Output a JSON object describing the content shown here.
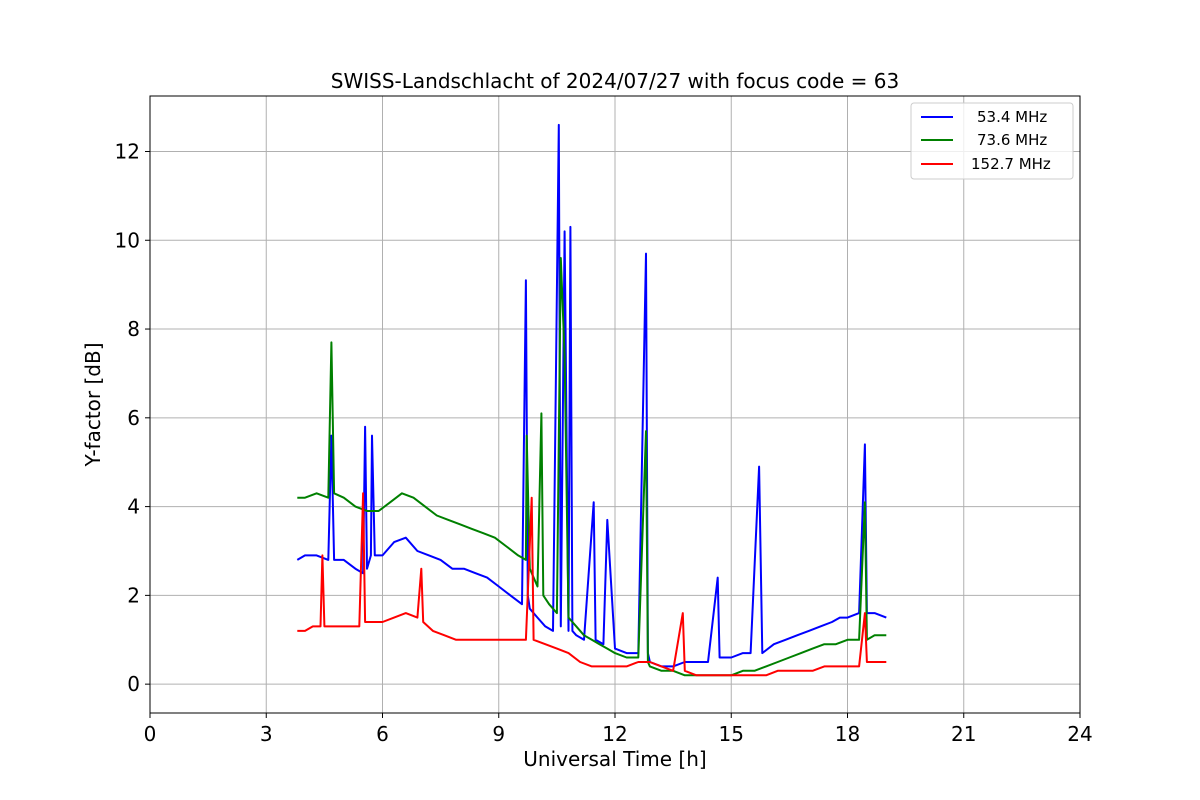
{
  "chart_data": {
    "type": "line",
    "title": "SWISS-Landschlacht of 2024/07/27 with focus code = 63",
    "xlabel": "Universal Time [h]",
    "ylabel": "Y-factor [dB]",
    "xlim": [
      0,
      24
    ],
    "ylim": [
      -0.65,
      13.25
    ],
    "xticks": [
      0,
      3,
      6,
      9,
      12,
      15,
      18,
      21,
      24
    ],
    "xtick_labels": [
      "0",
      "3",
      "6",
      "9",
      "12",
      "15",
      "18",
      "21",
      "24"
    ],
    "yticks": [
      0,
      2,
      4,
      6,
      8,
      10,
      12
    ],
    "ytick_labels": [
      "0",
      "2",
      "4",
      "6",
      "8",
      "10",
      "12"
    ],
    "grid": true,
    "legend_position": "top-right",
    "series": [
      {
        "name": "53.4 MHz",
        "color": "#0000ff",
        "x": [
          3.8,
          4.0,
          4.3,
          4.6,
          4.68,
          4.75,
          5.0,
          5.3,
          5.5,
          5.55,
          5.6,
          5.7,
          5.73,
          5.8,
          6.0,
          6.3,
          6.6,
          6.9,
          7.2,
          7.5,
          7.8,
          8.1,
          8.4,
          8.7,
          9.0,
          9.3,
          9.6,
          9.7,
          9.75,
          9.8,
          10.0,
          10.2,
          10.4,
          10.55,
          10.6,
          10.7,
          10.8,
          10.85,
          10.9,
          11.0,
          11.2,
          11.45,
          11.5,
          11.7,
          11.8,
          12.0,
          12.3,
          12.6,
          12.8,
          12.85,
          12.9,
          13.2,
          13.5,
          13.8,
          14.1,
          14.4,
          14.65,
          14.7,
          15.0,
          15.3,
          15.5,
          15.72,
          15.8,
          16.1,
          16.4,
          16.7,
          17.0,
          17.3,
          17.6,
          17.8,
          18.0,
          18.3,
          18.45,
          18.5,
          18.7,
          19.0
        ],
        "values": [
          2.8,
          2.9,
          2.9,
          2.8,
          5.6,
          2.8,
          2.8,
          2.6,
          2.5,
          5.8,
          2.6,
          2.9,
          5.6,
          2.9,
          2.9,
          3.2,
          3.3,
          3.0,
          2.9,
          2.8,
          2.6,
          2.6,
          2.5,
          2.4,
          2.2,
          2.0,
          1.8,
          9.1,
          2.0,
          1.7,
          1.5,
          1.3,
          1.2,
          12.6,
          1.3,
          10.2,
          1.2,
          10.3,
          1.2,
          1.1,
          1.0,
          4.1,
          1.0,
          0.9,
          3.7,
          0.8,
          0.7,
          0.7,
          9.7,
          0.7,
          0.5,
          0.4,
          0.4,
          0.5,
          0.5,
          0.5,
          2.4,
          0.6,
          0.6,
          0.7,
          0.7,
          4.9,
          0.7,
          0.9,
          1.0,
          1.1,
          1.2,
          1.3,
          1.4,
          1.5,
          1.5,
          1.6,
          5.4,
          1.6,
          1.6,
          1.5
        ]
      },
      {
        "name": "73.6 MHz",
        "color": "#008000",
        "x": [
          3.8,
          4.0,
          4.3,
          4.6,
          4.68,
          4.75,
          5.0,
          5.3,
          5.6,
          5.9,
          6.2,
          6.5,
          6.8,
          7.1,
          7.4,
          7.7,
          8.0,
          8.3,
          8.6,
          8.9,
          9.2,
          9.5,
          9.7,
          9.72,
          9.8,
          10.0,
          10.1,
          10.15,
          10.3,
          10.5,
          10.6,
          10.7,
          10.8,
          10.9,
          11.0,
          11.2,
          11.4,
          11.6,
          11.8,
          12.0,
          12.3,
          12.6,
          12.8,
          12.85,
          12.9,
          13.2,
          13.5,
          13.8,
          14.1,
          14.4,
          14.7,
          15.0,
          15.3,
          15.6,
          15.9,
          16.2,
          16.5,
          16.8,
          17.1,
          17.4,
          17.7,
          18.0,
          18.3,
          18.45,
          18.5,
          18.7,
          19.0
        ],
        "values": [
          4.2,
          4.2,
          4.3,
          4.2,
          7.7,
          4.3,
          4.2,
          4.0,
          3.9,
          3.9,
          4.1,
          4.3,
          4.2,
          4.0,
          3.8,
          3.7,
          3.6,
          3.5,
          3.4,
          3.3,
          3.1,
          2.9,
          2.8,
          5.6,
          2.6,
          2.2,
          6.1,
          2.0,
          1.8,
          1.6,
          9.6,
          7.4,
          1.5,
          1.4,
          1.3,
          1.1,
          1.0,
          0.9,
          0.8,
          0.7,
          0.6,
          0.6,
          5.7,
          0.5,
          0.4,
          0.3,
          0.3,
          0.2,
          0.2,
          0.2,
          0.2,
          0.2,
          0.3,
          0.3,
          0.4,
          0.5,
          0.6,
          0.7,
          0.8,
          0.9,
          0.9,
          1.0,
          1.0,
          4.1,
          1.0,
          1.1,
          1.1
        ]
      },
      {
        "name": "152.7 MHz",
        "color": "#ff0000",
        "x": [
          3.8,
          4.0,
          4.2,
          4.4,
          4.45,
          4.5,
          4.8,
          5.1,
          5.4,
          5.5,
          5.55,
          5.7,
          6.0,
          6.3,
          6.6,
          6.9,
          7.0,
          7.05,
          7.3,
          7.6,
          7.9,
          8.2,
          8.5,
          8.8,
          9.1,
          9.4,
          9.7,
          9.85,
          9.9,
          10.2,
          10.5,
          10.8,
          11.1,
          11.4,
          11.7,
          12.0,
          12.3,
          12.6,
          12.9,
          13.2,
          13.5,
          13.75,
          13.8,
          14.1,
          14.4,
          14.7,
          15.0,
          15.3,
          15.6,
          15.9,
          16.2,
          16.5,
          16.8,
          17.1,
          17.4,
          17.7,
          18.0,
          18.3,
          18.45,
          18.5,
          18.7,
          19.0
        ],
        "values": [
          1.2,
          1.2,
          1.3,
          1.3,
          2.9,
          1.3,
          1.3,
          1.3,
          1.3,
          4.3,
          1.4,
          1.4,
          1.4,
          1.5,
          1.6,
          1.5,
          2.6,
          1.4,
          1.2,
          1.1,
          1.0,
          1.0,
          1.0,
          1.0,
          1.0,
          1.0,
          1.0,
          4.2,
          1.0,
          0.9,
          0.8,
          0.7,
          0.5,
          0.4,
          0.4,
          0.4,
          0.4,
          0.5,
          0.5,
          0.4,
          0.3,
          1.6,
          0.3,
          0.2,
          0.2,
          0.2,
          0.2,
          0.2,
          0.2,
          0.2,
          0.3,
          0.3,
          0.3,
          0.3,
          0.4,
          0.4,
          0.4,
          0.4,
          1.6,
          0.5,
          0.5,
          0.5
        ]
      }
    ]
  }
}
